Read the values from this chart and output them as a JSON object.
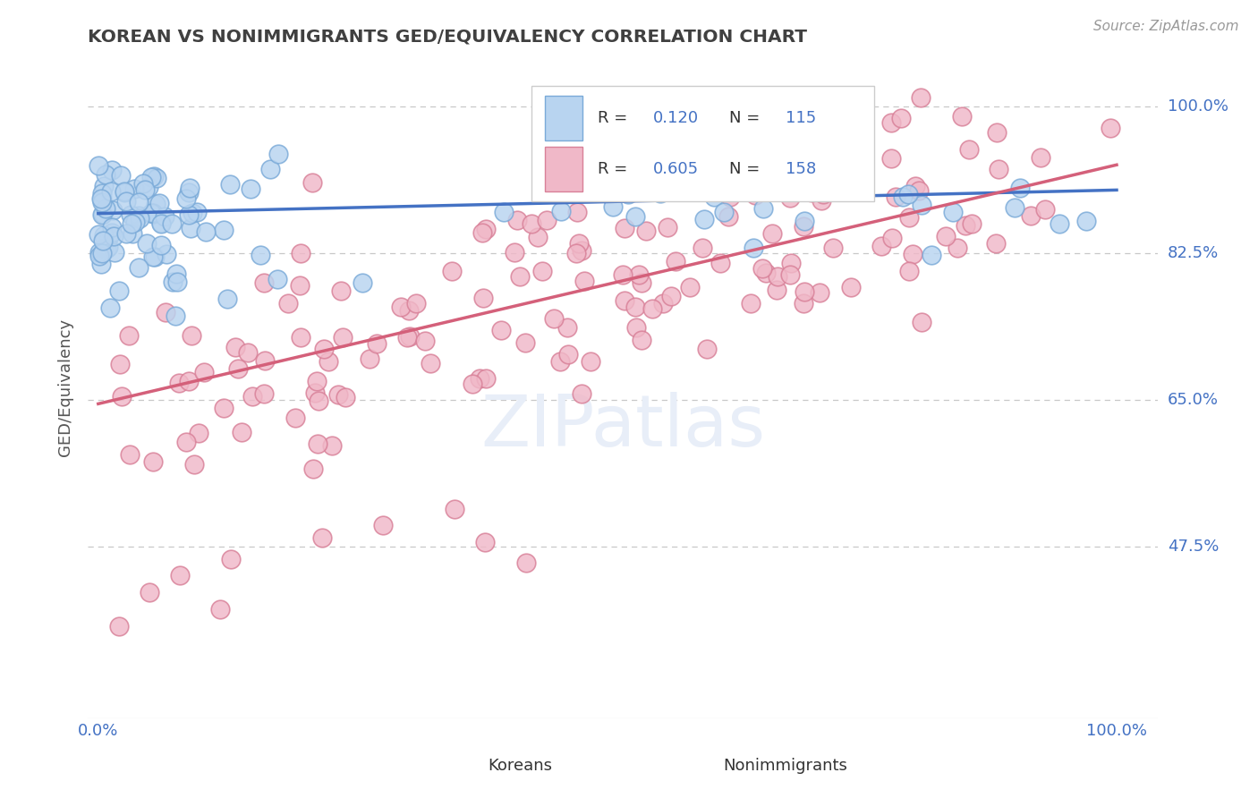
{
  "title": "KOREAN VS NONIMMIGRANTS GED/EQUIVALENCY CORRELATION CHART",
  "source": "Source: ZipAtlas.com",
  "ylabel": "GED/Equivalency",
  "ytick_labels": [
    "47.5%",
    "65.0%",
    "82.5%",
    "100.0%"
  ],
  "xtick_labels": [
    "0.0%",
    "100.0%"
  ],
  "blue_line_color": "#4472c4",
  "pink_line_color": "#d4607a",
  "korean_dot_facecolor": "#b8d4f0",
  "korean_dot_edgecolor": "#7aaad8",
  "nonimmigrant_dot_facecolor": "#f0b8c8",
  "nonimmigrant_dot_edgecolor": "#d88098",
  "title_color": "#404040",
  "axis_label_color": "#4472c4",
  "watermark_color": "#e8eef8",
  "background_color": "#ffffff",
  "grid_color": "#c8c8c8",
  "legend_R1": "0.120",
  "legend_N1": "115",
  "legend_R2": "0.605",
  "legend_N2": "158",
  "blue_line_y0": 0.872,
  "blue_line_y1": 0.9,
  "pink_line_y0": 0.645,
  "pink_line_y1": 0.93,
  "ymin": 0.27,
  "ymax": 1.06,
  "xmin": 0.0,
  "xmax": 1.0
}
